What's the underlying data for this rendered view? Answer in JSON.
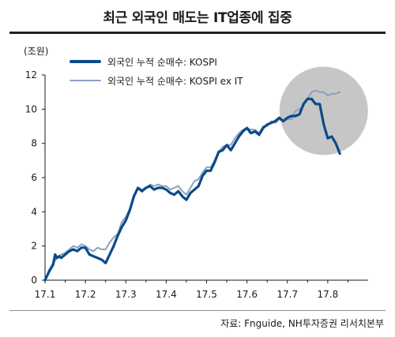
{
  "title": "최근 외국인 매도는 IT업종에 집중",
  "unit_label": "(조원)",
  "source": "자료: Fnguide, NH투자증권 리서치본부",
  "colors": {
    "kospi": "#0b4a8b",
    "kospi_ex_it": "#8d9fc4",
    "highlight": "#c6c6c6",
    "axis": "#1a1a1a"
  },
  "chart_data": {
    "type": "line",
    "title": "최근 외국인 매도는 IT업종에 집중",
    "xlabel": "",
    "ylabel": "(조원)",
    "x_ticks": [
      "17.1",
      "17.2",
      "17.3",
      "17.4",
      "17.5",
      "17.6",
      "17.7",
      "17.8"
    ],
    "y_ticks": [
      0,
      2,
      4,
      6,
      8,
      10,
      12
    ],
    "xlim": [
      17.1,
      17.9
    ],
    "ylim": [
      0,
      12
    ],
    "grid": false,
    "legend": "top-left",
    "highlight_circle": {
      "x": 17.79,
      "y": 9.9
    },
    "series": [
      {
        "name": "외국인 누적 순매수: KOSPI",
        "x": [
          17.1,
          17.11,
          17.12,
          17.125,
          17.13,
          17.135,
          17.14,
          17.15,
          17.16,
          17.17,
          17.18,
          17.19,
          17.2,
          17.21,
          17.22,
          17.23,
          17.24,
          17.25,
          17.26,
          17.27,
          17.28,
          17.29,
          17.3,
          17.31,
          17.32,
          17.33,
          17.34,
          17.35,
          17.36,
          17.37,
          17.38,
          17.39,
          17.4,
          17.41,
          17.42,
          17.43,
          17.44,
          17.45,
          17.46,
          17.47,
          17.48,
          17.49,
          17.5,
          17.51,
          17.52,
          17.53,
          17.54,
          17.55,
          17.56,
          17.57,
          17.58,
          17.59,
          17.6,
          17.61,
          17.62,
          17.63,
          17.64,
          17.65,
          17.66,
          17.67,
          17.68,
          17.69,
          17.7,
          17.71,
          17.72,
          17.73,
          17.74,
          17.75,
          17.76,
          17.77,
          17.78,
          17.79,
          17.8,
          17.81,
          17.82,
          17.83
        ],
        "y": [
          0.0,
          0.5,
          0.9,
          1.5,
          1.3,
          1.4,
          1.3,
          1.5,
          1.7,
          1.8,
          1.7,
          1.9,
          1.9,
          1.5,
          1.4,
          1.3,
          1.2,
          1.0,
          1.5,
          2.0,
          2.6,
          3.1,
          3.5,
          4.1,
          4.9,
          5.4,
          5.2,
          5.4,
          5.5,
          5.3,
          5.4,
          5.4,
          5.3,
          5.1,
          5.0,
          5.2,
          4.9,
          4.7,
          5.1,
          5.3,
          5.5,
          6.1,
          6.4,
          6.4,
          6.9,
          7.5,
          7.6,
          7.9,
          7.6,
          8.0,
          8.4,
          8.7,
          8.9,
          8.6,
          8.7,
          8.5,
          8.9,
          9.1,
          9.2,
          9.3,
          9.5,
          9.3,
          9.5,
          9.6,
          9.6,
          9.7,
          10.3,
          10.6,
          10.6,
          10.3,
          10.3,
          9.1,
          8.3,
          8.4,
          8.0,
          7.4
        ]
      },
      {
        "name": "외국인 누적 순매수: KOSPI ex IT",
        "x": [
          17.1,
          17.11,
          17.12,
          17.13,
          17.14,
          17.15,
          17.16,
          17.17,
          17.18,
          17.19,
          17.2,
          17.21,
          17.22,
          17.23,
          17.24,
          17.25,
          17.26,
          17.27,
          17.28,
          17.29,
          17.3,
          17.31,
          17.32,
          17.33,
          17.34,
          17.35,
          17.36,
          17.37,
          17.38,
          17.39,
          17.4,
          17.41,
          17.42,
          17.43,
          17.44,
          17.45,
          17.46,
          17.47,
          17.48,
          17.49,
          17.5,
          17.51,
          17.52,
          17.53,
          17.54,
          17.55,
          17.56,
          17.57,
          17.58,
          17.59,
          17.6,
          17.61,
          17.62,
          17.63,
          17.64,
          17.65,
          17.66,
          17.67,
          17.68,
          17.69,
          17.7,
          17.71,
          17.72,
          17.73,
          17.74,
          17.75,
          17.76,
          17.77,
          17.78,
          17.79,
          17.8,
          17.81,
          17.82,
          17.83
        ],
        "y": [
          0.0,
          0.6,
          1.0,
          1.3,
          1.5,
          1.6,
          1.8,
          2.0,
          1.9,
          2.1,
          2.0,
          1.8,
          1.7,
          1.9,
          1.8,
          1.8,
          2.2,
          2.5,
          2.7,
          3.4,
          3.7,
          4.2,
          5.0,
          5.4,
          5.3,
          5.4,
          5.6,
          5.5,
          5.6,
          5.5,
          5.5,
          5.3,
          5.4,
          5.5,
          5.2,
          5.0,
          5.4,
          5.8,
          5.9,
          6.3,
          6.6,
          6.6,
          7.0,
          7.5,
          7.8,
          7.9,
          7.9,
          8.3,
          8.6,
          8.8,
          8.9,
          8.8,
          8.8,
          8.6,
          9.0,
          9.0,
          9.3,
          9.2,
          9.4,
          9.3,
          9.4,
          9.4,
          9.9,
          10.0,
          10.2,
          10.6,
          11.0,
          11.1,
          11.0,
          11.0,
          10.8,
          10.9,
          10.9,
          11.0
        ]
      }
    ]
  }
}
